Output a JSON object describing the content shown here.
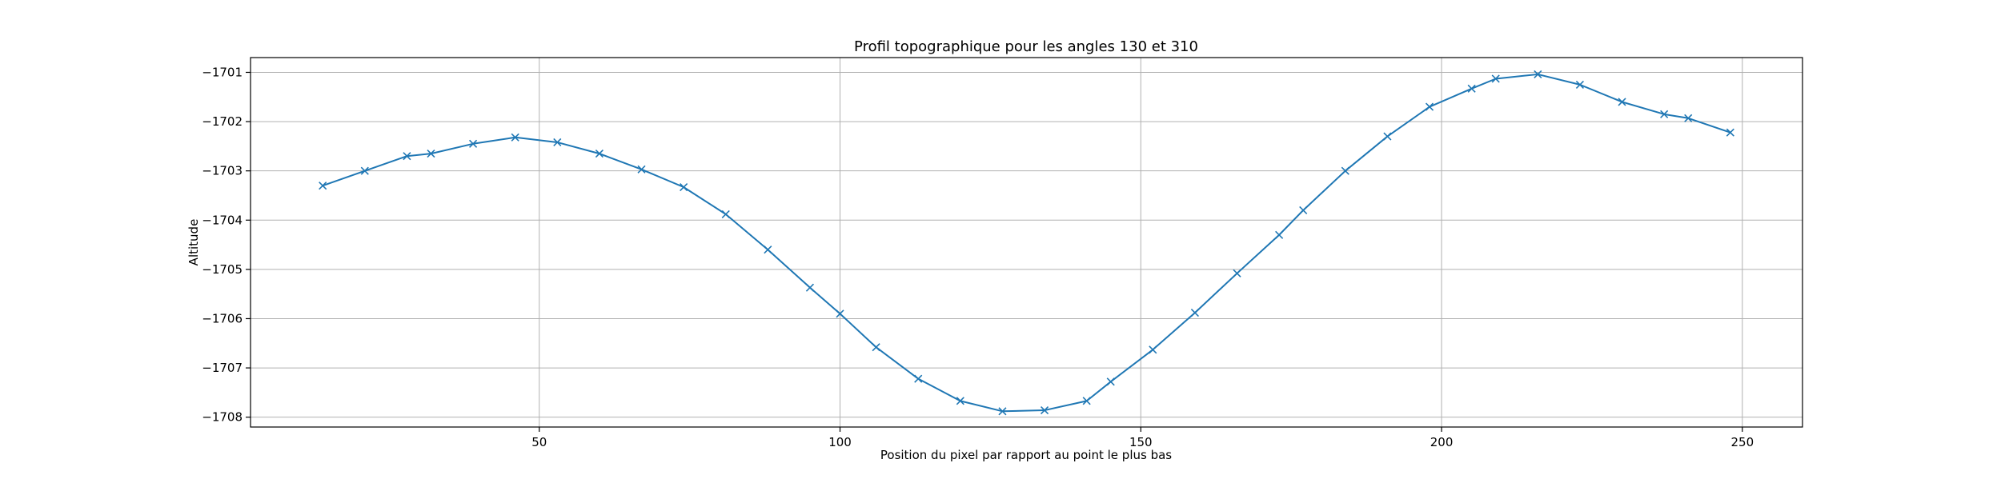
{
  "chart_data": {
    "type": "line",
    "title": "Profil topographique pour les angles 130 et 310",
    "xlabel": "Position du pixel par rapport au point le plus bas",
    "ylabel": "Altitude",
    "xlim": [
      2,
      260
    ],
    "ylim": [
      -1708.2,
      -1700.7
    ],
    "xticks": [
      50,
      100,
      150,
      200,
      250
    ],
    "xtick_labels": [
      "50",
      "100",
      "150",
      "200",
      "250"
    ],
    "yticks": [
      -1708,
      -1707,
      -1706,
      -1705,
      -1704,
      -1703,
      -1702,
      -1701
    ],
    "ytick_labels": [
      "−1708",
      "−1707",
      "−1706",
      "−1705",
      "−1704",
      "−1703",
      "−1702",
      "−1701"
    ],
    "grid": true,
    "series": [
      {
        "marker": "x",
        "color": "#1f77b4",
        "x": [
          14,
          21,
          28,
          32,
          39,
          46,
          53,
          60,
          67,
          74,
          81,
          88,
          95,
          100,
          106,
          113,
          120,
          127,
          134,
          141,
          145,
          152,
          159,
          166,
          173,
          177,
          184,
          191,
          198,
          205,
          209,
          216,
          223,
          230,
          237,
          241,
          248
        ],
        "y": [
          -1703.3,
          -1703.0,
          -1702.7,
          -1702.65,
          -1702.45,
          -1702.32,
          -1702.42,
          -1702.65,
          -1702.97,
          -1703.33,
          -1703.88,
          -1704.6,
          -1705.37,
          -1705.9,
          -1706.58,
          -1707.22,
          -1707.67,
          -1707.88,
          -1707.86,
          -1707.67,
          -1707.28,
          -1706.63,
          -1705.88,
          -1705.08,
          -1704.3,
          -1703.8,
          -1703.0,
          -1702.3,
          -1701.7,
          -1701.33,
          -1701.13,
          -1701.04,
          -1701.25,
          -1701.6,
          -1701.85,
          -1701.93,
          -1702.22
        ]
      }
    ]
  },
  "colors": {
    "series": "#1f77b4",
    "grid": "#b0b0b0",
    "axes": "#000000"
  }
}
